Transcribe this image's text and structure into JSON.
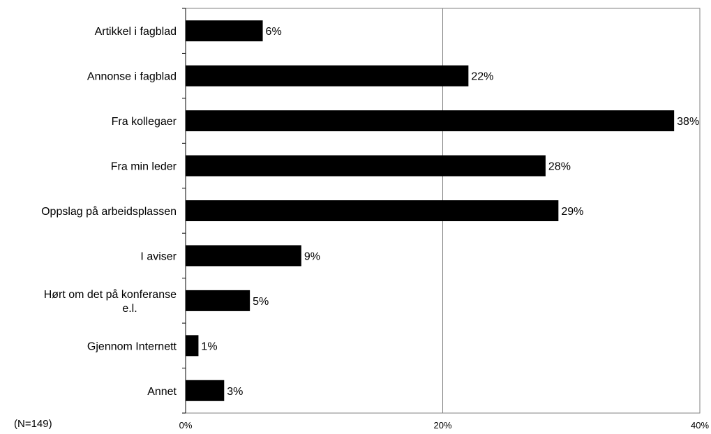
{
  "chart_data": {
    "type": "bar",
    "orientation": "horizontal",
    "categories": [
      "Artikkel i fagblad",
      "Annonse i fagblad",
      "Fra kollegaer",
      "Fra min leder",
      "Oppslag på arbeidsplassen",
      "I aviser",
      "Hørt om det på konferanse e.l.",
      "Gjennom Internett",
      "Annet"
    ],
    "values": [
      6,
      22,
      38,
      28,
      29,
      9,
      5,
      1,
      3
    ],
    "data_labels": [
      "6%",
      "22%",
      "38%",
      "28%",
      "29%",
      "9%",
      "5%",
      "1%",
      "3%"
    ],
    "xlim": [
      0,
      40
    ],
    "x_ticks": [
      0,
      20,
      40
    ],
    "x_tick_labels": [
      "0%",
      "20%",
      "40%"
    ],
    "note": "(N=149)",
    "grid": "vertical gridlines at major ticks",
    "bar_color": "#000000",
    "grid_color": "#808080"
  }
}
